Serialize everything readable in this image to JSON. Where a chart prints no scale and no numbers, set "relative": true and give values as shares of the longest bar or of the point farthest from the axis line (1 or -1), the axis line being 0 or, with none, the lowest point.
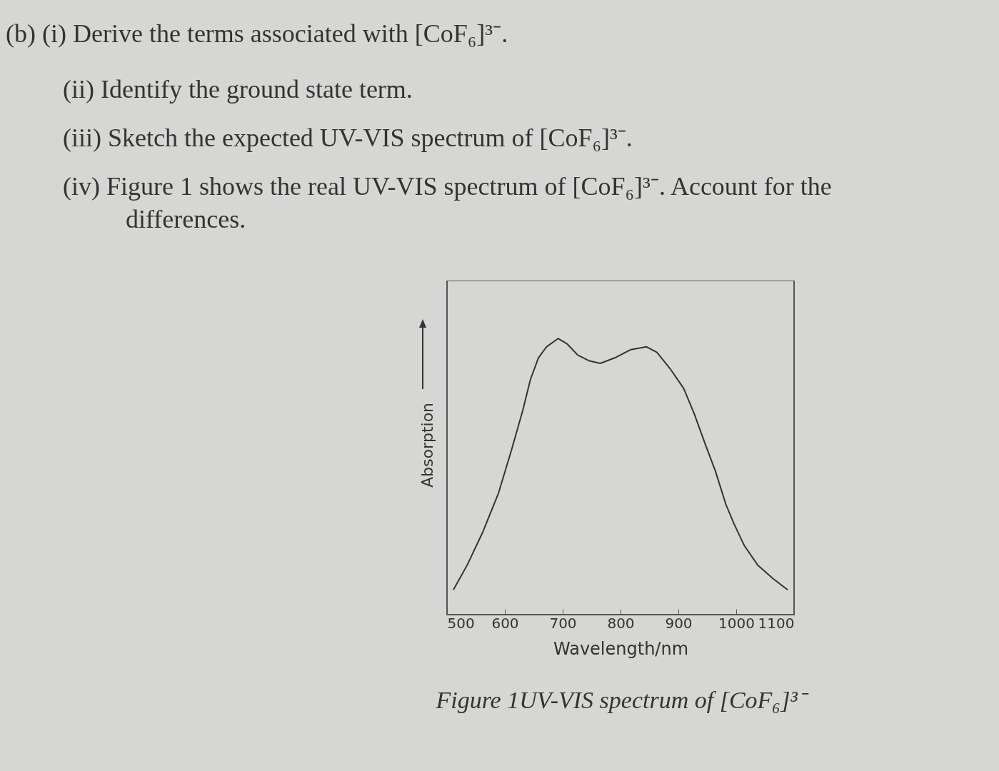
{
  "chart_data": {
    "type": "line",
    "title": "Figure 1UV-VIS spectrum of [CoF₆]³⁻",
    "xlabel": "Wavelength/nm",
    "ylabel": "Absorption",
    "annotations": [
      "(b) (i) Derive the terms associated with [CoF₆]³⁻.",
      "(ii) Identify the ground state term.",
      "(iii) Sketch the expected UV-VIS spectrum of [CoF₆]³⁻.",
      "(iv) Figure 1 shows the real UV-VIS spectrum of [CoF₆]³⁻. Account for the differences."
    ],
    "relative": true,
    "xlim": [
      500,
      1100
    ],
    "xticks": [
      500,
      600,
      700,
      800,
      900,
      1000,
      1100
    ],
    "x": [
      511,
      535,
      562,
      589,
      612,
      631,
      644,
      658,
      672,
      692,
      708,
      726,
      745,
      765,
      790,
      818,
      845,
      863,
      886,
      909,
      927,
      946,
      964,
      982,
      996,
      1014,
      1037,
      1064,
      1089
    ],
    "series": [
      {
        "color": "#333333",
        "values": [
          0.09,
          0.18,
          0.3,
          0.44,
          0.6,
          0.74,
          0.85,
          0.93,
          0.97,
          1.0,
          0.98,
          0.94,
          0.92,
          0.91,
          0.93,
          0.96,
          0.97,
          0.95,
          0.89,
          0.82,
          0.73,
          0.62,
          0.52,
          0.4,
          0.33,
          0.25,
          0.18,
          0.13,
          0.09
        ]
      }
    ],
    "grid": false,
    "marker": "none",
    "line_style": "solid"
  }
}
